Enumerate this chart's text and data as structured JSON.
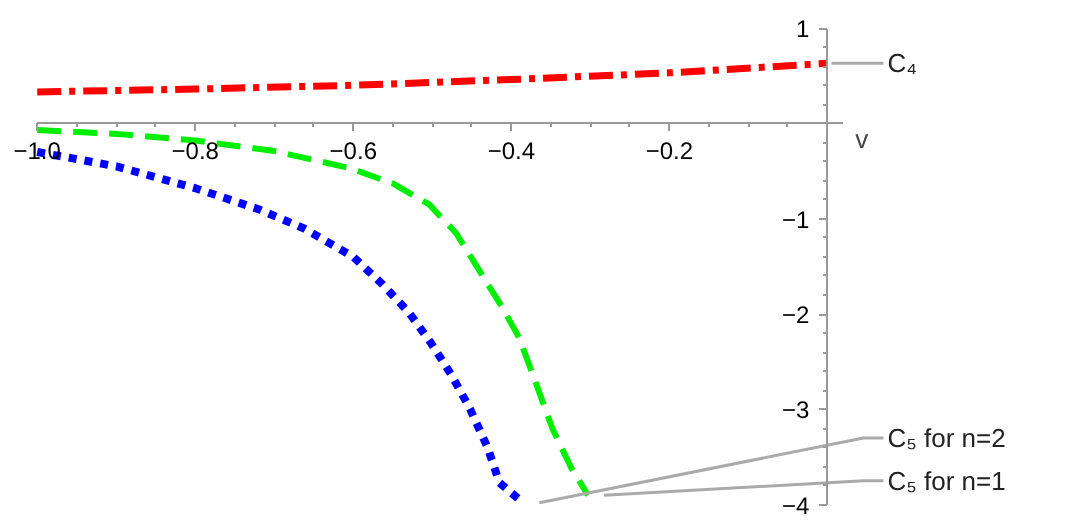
{
  "chart_data": {
    "type": "line",
    "xlabel": "v",
    "xlim": [
      -1.0,
      0.02
    ],
    "ylim": [
      -4,
      1
    ],
    "xticks": [
      {
        "value": -1.0,
        "label": "−1.0"
      },
      {
        "value": -0.8,
        "label": "−0.8"
      },
      {
        "value": -0.6,
        "label": "−0.6"
      },
      {
        "value": -0.4,
        "label": "−0.4"
      },
      {
        "value": -0.2,
        "label": "−0.2"
      }
    ],
    "yticks": [
      1,
      {
        "value": -1,
        "label": "−1"
      },
      {
        "value": -2,
        "label": "−2"
      },
      {
        "value": -3,
        "label": "−3"
      },
      {
        "value": -4,
        "label": "−4"
      }
    ],
    "grid": false,
    "series": [
      {
        "name": "C₄",
        "color": "#ff0000",
        "line_style": "dashdot",
        "x": [
          -1.0,
          -0.8,
          -0.6,
          -0.4,
          -0.2,
          0.0
        ],
        "values": [
          0.33,
          0.36,
          0.4,
          0.46,
          0.53,
          0.63
        ]
      },
      {
        "name": "C₅ for n=2",
        "color": "#0000ff",
        "line_style": "dotted",
        "x": [
          -1.0,
          -0.9,
          -0.8,
          -0.72,
          -0.663,
          -0.6,
          -0.564,
          -0.53,
          -0.502,
          -0.475,
          -0.452,
          -0.43,
          -0.415,
          -0.385
        ],
        "values": [
          -0.3,
          -0.45,
          -0.68,
          -0.9,
          -1.1,
          -1.4,
          -1.68,
          -1.98,
          -2.3,
          -2.65,
          -3.0,
          -3.4,
          -3.77,
          -3.98
        ]
      },
      {
        "name": "C₅ for n=1",
        "color": "#00ee00",
        "line_style": "dashed",
        "x": [
          -1.0,
          -0.9,
          -0.8,
          -0.7,
          -0.604,
          -0.55,
          -0.504,
          -0.47,
          -0.44,
          -0.41,
          -0.39,
          -0.37,
          -0.348,
          -0.325,
          -0.303
        ],
        "values": [
          -0.07,
          -0.11,
          -0.18,
          -0.29,
          -0.47,
          -0.63,
          -0.85,
          -1.15,
          -1.55,
          -1.95,
          -2.25,
          -2.7,
          -3.2,
          -3.6,
          -3.9
        ]
      }
    ]
  }
}
